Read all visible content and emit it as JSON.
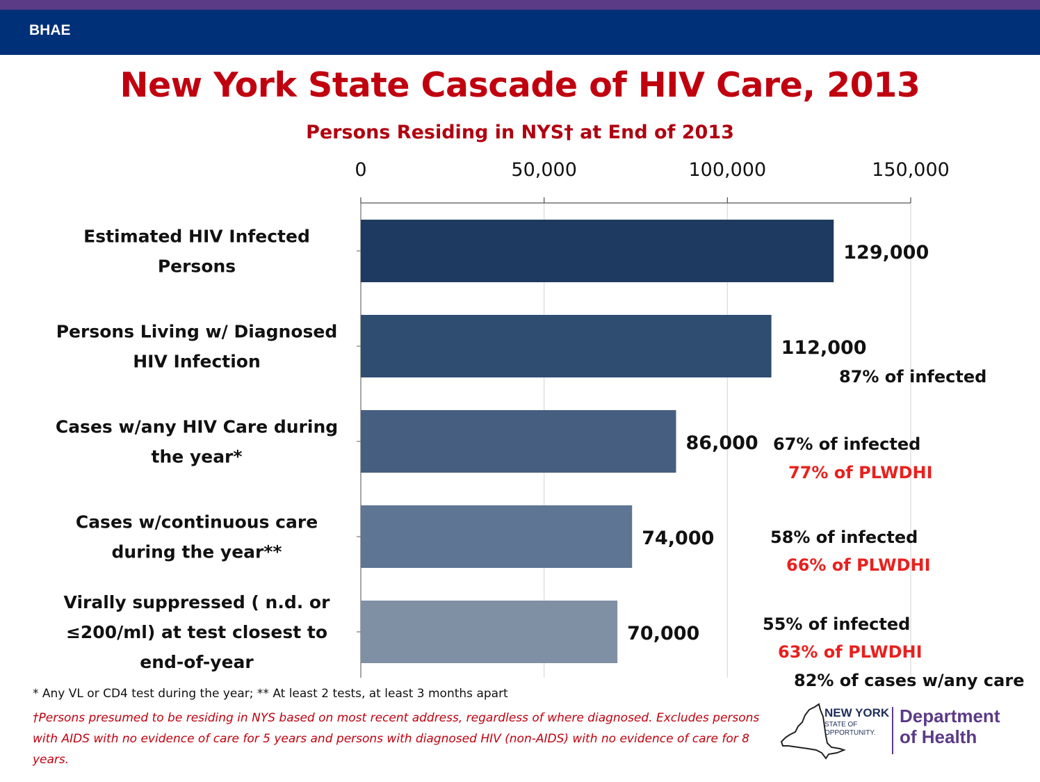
{
  "header": {
    "label": "BHAE"
  },
  "colors": {
    "purple_bar": "#5b3a86",
    "header_bg": "#003178",
    "title": "#c0000f"
  },
  "chart_data": {
    "type": "bar",
    "orientation": "horizontal",
    "title": "New York State Cascade of HIV Care, 2013",
    "subtitle": "Persons Residing in NYS† at End of 2013",
    "xlim": [
      0,
      150000
    ],
    "x_ticks": [
      "0",
      "50,000",
      "100,000",
      "150,000"
    ],
    "x_tick_values": [
      0,
      50000,
      100000,
      150000
    ],
    "grid": true,
    "categories": [
      [
        "Estimated HIV Infected",
        "Persons"
      ],
      [
        "Persons Living w/ Diagnosed",
        "HIV Infection"
      ],
      [
        "Cases w/any HIV Care during",
        "the year*"
      ],
      [
        "Cases w/continuous care",
        "during the year**"
      ],
      [
        "Virally suppressed ( n.d. or",
        "≤200/ml) at test closest to",
        "end-of-year"
      ]
    ],
    "values": [
      129000,
      112000,
      86000,
      74000,
      70000
    ],
    "value_labels": [
      "129,000",
      "112,000",
      "86,000",
      "74,000",
      "70,000"
    ],
    "bar_colors": [
      "#1f3a60",
      "#2f4d70",
      "#465f80",
      "#5e7593",
      "#7f90a5"
    ],
    "annotations": [
      [],
      [
        {
          "text": "87% of infected",
          "color": "#111111"
        }
      ],
      [
        {
          "text": "67% of infected",
          "color": "#111111"
        },
        {
          "text": "77% of PLWDHI",
          "color": "#e8211e"
        }
      ],
      [
        {
          "text": "58% of infected",
          "color": "#111111"
        },
        {
          "text": "66% of PLWDHI",
          "color": "#e8211e"
        }
      ],
      [
        {
          "text": "55% of infected",
          "color": "#111111"
        },
        {
          "text": "63% of PLWDHI",
          "color": "#e8211e"
        },
        {
          "text": "82% of cases w/any care",
          "color": "#111111"
        }
      ]
    ]
  },
  "footnotes": {
    "line1": "* Any VL or CD4 test during the year; ** At least 2 tests, at least 3 months apart",
    "line2": "†Persons presumed to be residing in NYS based on most recent address, regardless of where diagnosed. Excludes persons with AIDS with no evidence of care for 5 years  and persons with diagnosed HIV (non-AIDS) with no evidence of care for 8  years."
  },
  "logo": {
    "state_line1": "NEW YORK",
    "state_line2": "STATE OF",
    "state_line3": "OPPORTUNITY.",
    "dept_line1": "Department",
    "dept_line2": "of Health"
  }
}
